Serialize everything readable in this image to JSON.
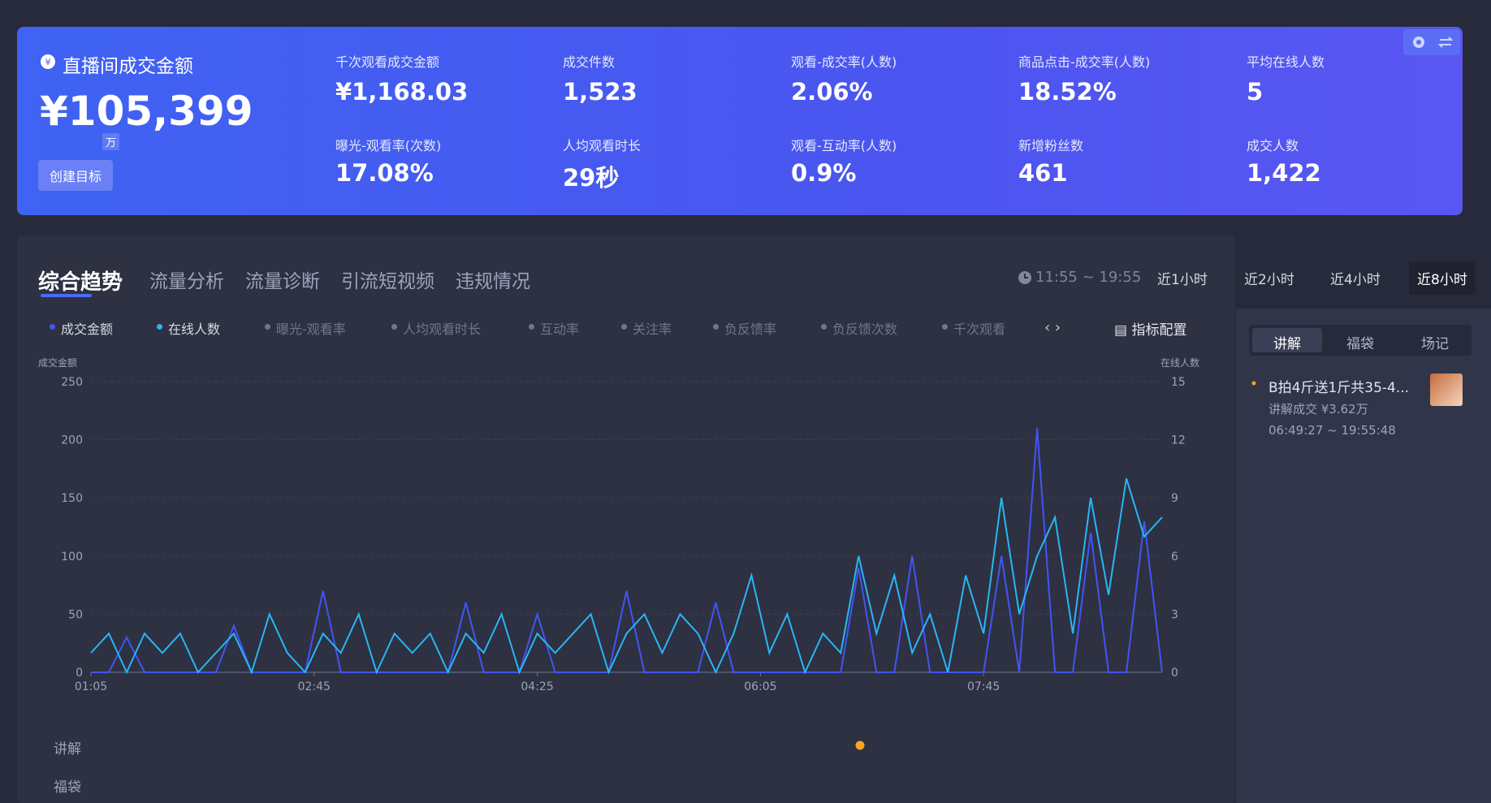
{
  "header": {
    "title": "直播间成交金额",
    "value": "¥105,399",
    "unit_badge": "万",
    "button": "创建目标",
    "metrics": [
      {
        "label": "千次观看成交金额",
        "value": "¥1,168.03"
      },
      {
        "label": "成交件数",
        "value": "1,523"
      },
      {
        "label": "观看-成交率(人数)",
        "value": "2.06%"
      },
      {
        "label": "商品点击-成交率(人数)",
        "value": "18.52%"
      },
      {
        "label": "平均在线人数",
        "value": "5"
      },
      {
        "label": "曝光-观看率(次数)",
        "value": "17.08%"
      },
      {
        "label": "人均观看时长",
        "value": "29秒"
      },
      {
        "label": "观看-互动率(人数)",
        "value": "0.9%"
      },
      {
        "label": "新增粉丝数",
        "value": "461"
      },
      {
        "label": "成交人数",
        "value": "1,422"
      }
    ]
  },
  "tabs": [
    "综合趋势",
    "流量分析",
    "流量诊断",
    "引流短视频",
    "违规情况"
  ],
  "time_range": "11:55 ~ 19:55",
  "range_buttons": [
    "近1小时",
    "近2小时",
    "近4小时",
    "近8小时"
  ],
  "metric_chips": [
    "曝光-观看率",
    "人均观看时长",
    "互动率",
    "关注率",
    "负反馈率",
    "负反馈次数",
    "千次观看"
  ],
  "config_button": "指标配置",
  "chart_data": {
    "type": "line",
    "y_label": "成交金额",
    "y2_label": "在线人数",
    "x": [
      65,
      73,
      81,
      89,
      97,
      105,
      113,
      121,
      129,
      137,
      145,
      153,
      161,
      169,
      177,
      185,
      193,
      201,
      209,
      217,
      225,
      233,
      241,
      249,
      257,
      265,
      273,
      281,
      289,
      297,
      305,
      313,
      321,
      329,
      337,
      345,
      353,
      361,
      369,
      377,
      385,
      393,
      401,
      409,
      417,
      425,
      433,
      441,
      449,
      457,
      465,
      473,
      481,
      489,
      497,
      505,
      513,
      521,
      529,
      537,
      545
    ],
    "xlim": [
      65,
      545
    ],
    "xticks": [
      {
        "value": 65,
        "label": "01:05"
      },
      {
        "value": 165,
        "label": "02:45"
      },
      {
        "value": 265,
        "label": "04:25"
      },
      {
        "value": 365,
        "label": "06:05"
      },
      {
        "value": 465,
        "label": "07:45"
      }
    ],
    "ylim": [
      0,
      250
    ],
    "yticks": [
      0,
      50,
      100,
      150,
      200,
      250
    ],
    "y2lim": [
      0,
      15
    ],
    "y2ticks": [
      0,
      3,
      6,
      9,
      12,
      15
    ],
    "grid": true,
    "series": [
      {
        "name": "成交金额",
        "color": "#4354f5",
        "values": [
          0,
          0,
          30,
          0,
          0,
          0,
          0,
          0,
          40,
          0,
          0,
          0,
          0,
          70,
          0,
          0,
          0,
          0,
          0,
          0,
          0,
          60,
          0,
          0,
          0,
          50,
          0,
          0,
          0,
          0,
          70,
          0,
          0,
          0,
          0,
          60,
          0,
          0,
          0,
          0,
          0,
          0,
          0,
          90,
          0,
          0,
          100,
          0,
          0,
          0,
          0,
          100,
          0,
          210,
          0,
          0,
          120,
          0,
          0,
          130,
          0
        ]
      },
      {
        "name": "在线人数",
        "color": "#29b6f6",
        "axis": "y2",
        "values": [
          1,
          2,
          0,
          2,
          1,
          2,
          0,
          1,
          2,
          0,
          3,
          1,
          0,
          2,
          1,
          3,
          0,
          2,
          1,
          2,
          0,
          2,
          1,
          3,
          0,
          2,
          1,
          2,
          3,
          0,
          2,
          3,
          1,
          3,
          2,
          0,
          2,
          5,
          1,
          3,
          0,
          2,
          1,
          6,
          2,
          5,
          1,
          3,
          0,
          5,
          2,
          9,
          3,
          6,
          8,
          2,
          9,
          4,
          10,
          7,
          8
        ]
      }
    ]
  },
  "event_rows": [
    "讲解",
    "福袋"
  ],
  "side_panel": {
    "tabs": [
      "讲解",
      "福袋",
      "场记"
    ],
    "item": {
      "title": "B拍4斤送1斤共35-4...",
      "detail": "讲解成交 ¥3.62万",
      "time": "06:49:27 ~ 19:55:48"
    }
  }
}
